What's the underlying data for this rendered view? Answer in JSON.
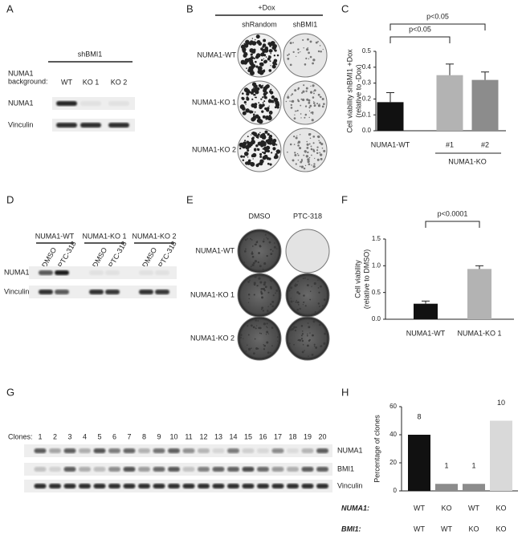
{
  "panel_a": {
    "label": "A",
    "treatment": "shBMI1",
    "background_label": [
      "NUMA1",
      "background:"
    ],
    "lanes": [
      "WT",
      "KO 1",
      "KO 2"
    ],
    "rows": [
      "NUMA1",
      "Vinculin"
    ]
  },
  "panel_b": {
    "label": "B",
    "treatment": "+Dox",
    "columns": [
      "shRandom",
      "shBMI1"
    ],
    "rows": [
      "NUMA1-WT",
      "NUMA1-KO 1",
      "NUMA1-KO 2"
    ]
  },
  "panel_d": {
    "label": "D",
    "groups": [
      "NUMA1-WT",
      "NUMA1-KO 1",
      "NUMA1-KO 2"
    ],
    "lanes": [
      "DMSO",
      "PTC-318",
      "DMSO",
      "PTC-318",
      "DMSO",
      "PTC-318"
    ],
    "rows": [
      "NUMA1",
      "Vinculin"
    ]
  },
  "panel_e": {
    "label": "E",
    "columns": [
      "DMSO",
      "PTC-318"
    ],
    "rows": [
      "NUMA1-WT",
      "NUMA1-KO 1",
      "NUMA1-KO 2"
    ]
  },
  "panel_g": {
    "label": "G",
    "clones_label": "Clones:",
    "clones": [
      1,
      2,
      3,
      4,
      5,
      6,
      7,
      8,
      9,
      10,
      11,
      12,
      13,
      14,
      15,
      16,
      17,
      18,
      19,
      20
    ],
    "rows": [
      "NUMA1",
      "BMI1",
      "Vinculin"
    ]
  },
  "chart_data": [
    {
      "type": "bar",
      "panel": "C",
      "ylabel": [
        "Cell viability shBMI1 +Dox",
        "(relative to -Dox)"
      ],
      "categories": [
        "NUMA1-WT",
        "#1",
        "#2"
      ],
      "group_label": "NUMA1-KO",
      "values": [
        0.18,
        0.35,
        0.32
      ],
      "errors": [
        0.06,
        0.07,
        0.05
      ],
      "colors": [
        "#111111",
        "#b3b3b3",
        "#8c8c8c"
      ],
      "ylim": [
        0,
        0.5
      ],
      "yticks": [
        {
          "value": 0,
          "label": "0.0"
        },
        {
          "value": 0.1,
          "label": "0.1"
        },
        {
          "value": 0.2,
          "label": "0.2"
        },
        {
          "value": 0.3,
          "label": "0.3"
        },
        {
          "value": 0.4,
          "label": "0.4"
        },
        {
          "value": 0.5,
          "label": "0.5"
        }
      ],
      "annotations": [
        "p<0.05",
        "p<0.05"
      ]
    },
    {
      "type": "bar",
      "panel": "F",
      "ylabel": [
        "Cell viability",
        "(relative to DMSO)"
      ],
      "categories": [
        "NUMA1-WT",
        "NUMA1-KO 1"
      ],
      "values": [
        0.29,
        0.94
      ],
      "errors": [
        0.05,
        0.06
      ],
      "colors": [
        "#111111",
        "#b3b3b3"
      ],
      "ylim": [
        0,
        1.5
      ],
      "yticks": [
        {
          "value": 0,
          "label": "0.0"
        },
        {
          "value": 0.5,
          "label": "0.5"
        },
        {
          "value": 1,
          "label": "1.0"
        },
        {
          "value": 1.5,
          "label": "1.5"
        }
      ],
      "annotations": [
        "p<0.0001"
      ]
    },
    {
      "type": "bar",
      "panel": "H",
      "ylabel": [
        "Percentage of clones"
      ],
      "values": [
        40,
        5,
        5,
        50
      ],
      "counts": [
        8,
        1,
        1,
        10
      ],
      "colors": [
        "#111111",
        "#8c8c8c",
        "#8c8c8c",
        "#d9d9d9"
      ],
      "ylim": [
        0,
        60
      ],
      "yticks": [
        0,
        20,
        40,
        60
      ],
      "row_labels": [
        "NUMA1:",
        "BMI1:"
      ],
      "rows": [
        [
          "WT",
          "KO",
          "WT",
          "KO"
        ],
        [
          "WT",
          "WT",
          "KO",
          "KO"
        ]
      ]
    }
  ]
}
